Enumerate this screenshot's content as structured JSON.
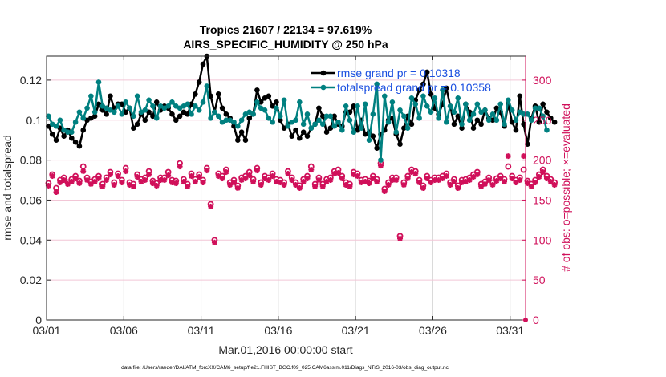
{
  "chart_data": {
    "type": "line",
    "title": "Tropics 21607 / 22134 = 97.619%",
    "subtitle": "AIRS_SPECIFIC_HUMIDITY @ 250 hPa",
    "xlabel": "Mar.01,2016 00:00:00 start",
    "ylabel": "rmse and totalspread",
    "y2label": "# of obs: o=possible; ×=evaluated",
    "footnote": "data file: /Users/raeder/DAI/ATM_forcXX/CAM6_setup/f.e21.FHIST_BGC.f09_025.CAM6assim.011/Diags_NTrS_2016-03/obs_diag_output.nc",
    "x_tick_labels": [
      "03/01",
      "03/06",
      "03/11",
      "03/16",
      "03/21",
      "03/26",
      "03/31"
    ],
    "x_tick_days": [
      0,
      5,
      10,
      15,
      20,
      25,
      30
    ],
    "xlim_days": [
      0,
      31
    ],
    "ylim": [
      0,
      0.132
    ],
    "y_ticks": [
      0,
      0.02,
      0.04,
      0.06,
      0.08,
      0.1,
      0.12
    ],
    "y_tick_labels": [
      "0",
      "0.02",
      "0.04",
      "0.06",
      "0.08",
      "0.1",
      "0.12"
    ],
    "y2lim": [
      0,
      330
    ],
    "y2_ticks": [
      0,
      50,
      100,
      150,
      200,
      250,
      300
    ],
    "y2_tick_labels": [
      "0",
      "50",
      "100",
      "150",
      "200",
      "250",
      "300"
    ],
    "legend_position": "top-right",
    "colors": {
      "rmse": "#000000",
      "totalspread": "#008080",
      "obs": "#d0105a",
      "legend_text": "#1a4fe0",
      "grid": "#f2c6d6",
      "vgrid": "#d9d9d9"
    },
    "time_step_days": 0.25,
    "series": [
      {
        "name": "rmse grand pr = 0.10318",
        "axis": "left",
        "values": [
          0.097,
          0.093,
          0.09,
          0.096,
          0.092,
          0.095,
          0.091,
          0.089,
          0.087,
          0.095,
          0.1,
          0.101,
          0.102,
          0.108,
          0.105,
          0.103,
          0.112,
          0.106,
          0.108,
          0.108,
          0.104,
          0.106,
          0.096,
          0.098,
          0.103,
          0.1,
          0.104,
          0.102,
          0.109,
          0.105,
          0.107,
          0.106,
          0.103,
          0.1,
          0.102,
          0.104,
          0.103,
          0.108,
          0.113,
          0.119,
          0.128,
          0.132,
          0.112,
          0.104,
          0.113,
          0.106,
          0.103,
          0.101,
          0.097,
          0.09,
          0.094,
          0.09,
          0.101,
          0.103,
          0.115,
          0.109,
          0.111,
          0.112,
          0.107,
          0.109,
          0.1,
          0.096,
          0.098,
          0.092,
          0.095,
          0.091,
          0.094,
          0.092,
          0.096,
          0.098,
          0.106,
          0.102,
          0.094,
          0.096,
          0.102,
          0.098,
          0.097,
          0.104,
          0.104,
          0.107,
          0.095,
          0.1,
          0.093,
          0.094,
          0.092,
          0.086,
          0.093,
          0.095,
          0.1,
          0.101,
          0.093,
          0.088,
          0.096,
          0.102,
          0.098,
          0.11,
          0.115,
          0.118,
          0.124,
          0.113,
          0.106,
          0.103,
          0.108,
          0.116,
          0.107,
          0.098,
          0.102,
          0.096,
          0.108,
          0.104,
          0.096,
          0.1,
          0.098,
          0.105,
          0.101,
          0.1,
          0.106,
          0.104,
          0.097,
          0.108,
          0.099,
          0.095,
          0.112,
          0.098,
          0.088,
          0.101,
          0.107,
          0.099,
          0.108,
          0.104,
          0.101,
          0.099
        ]
      },
      {
        "name": "totalspread grand pr = 0.10358",
        "axis": "left",
        "values": [
          0.102,
          0.098,
          0.097,
          0.1,
          0.095,
          0.094,
          0.094,
          0.099,
          0.104,
          0.101,
          0.106,
          0.112,
          0.104,
          0.119,
          0.107,
          0.106,
          0.105,
          0.104,
          0.107,
          0.103,
          0.109,
          0.106,
          0.102,
          0.112,
          0.104,
          0.105,
          0.11,
          0.107,
          0.101,
          0.107,
          0.106,
          0.107,
          0.109,
          0.107,
          0.106,
          0.107,
          0.108,
          0.103,
          0.107,
          0.105,
          0.109,
          0.117,
          0.101,
          0.104,
          0.102,
          0.099,
          0.1,
          0.1,
          0.099,
          0.097,
          0.1,
          0.103,
          0.104,
          0.103,
          0.109,
          0.106,
          0.105,
          0.101,
          0.099,
          0.106,
          0.102,
          0.11,
          0.097,
          0.099,
          0.1,
          0.109,
          0.098,
          0.103,
          0.096,
          0.098,
          0.1,
          0.098,
          0.102,
          0.102,
          0.097,
          0.099,
          0.095,
          0.107,
          0.1,
          0.094,
          0.107,
          0.096,
          0.108,
          0.09,
          0.103,
          0.118,
          0.08,
          0.112,
          0.099,
          0.109,
          0.094,
          0.105,
          0.102,
          0.096,
          0.111,
          0.108,
          0.101,
          0.112,
          0.107,
          0.104,
          0.111,
          0.101,
          0.115,
          0.099,
          0.107,
          0.104,
          0.111,
          0.098,
          0.108,
          0.1,
          0.103,
          0.108,
          0.104,
          0.105,
          0.1,
          0.103,
          0.1,
          0.108,
          0.098,
          0.11,
          0.105,
          0.1,
          0.104,
          0.103,
          0.103,
          0.1,
          0.106,
          0.106,
          0.102,
          0.095
        ]
      },
      {
        "name": "possible",
        "axis": "right",
        "marker": "o",
        "values": [
          171,
          182,
          165,
          175,
          178,
          172,
          176,
          180,
          174,
          192,
          178,
          173,
          176,
          180,
          170,
          178,
          185,
          172,
          183,
          175,
          190,
          172,
          170,
          182,
          176,
          178,
          186,
          174,
          171,
          178,
          178,
          185,
          175,
          174,
          196,
          176,
          170,
          183,
          176,
          182,
          175,
          190,
          145,
          100,
          183,
          180,
          188,
          172,
          175,
          168,
          178,
          180,
          185,
          176,
          190,
          172,
          180,
          178,
          183,
          176,
          175,
          172,
          186,
          178,
          172,
          168,
          176,
          180,
          192,
          170,
          178,
          170,
          176,
          178,
          186,
          188,
          180,
          172,
          170,
          185,
          183,
          175,
          176,
          174,
          180,
          176,
          196,
          164,
          172,
          178,
          178,
          105,
          172,
          180,
          188,
          186,
          175,
          168,
          180,
          175,
          178,
          178,
          180,
          183,
          172,
          176,
          168,
          175,
          176,
          178,
          182,
          185,
          170,
          173,
          178,
          172,
          177,
          180,
          176,
          192,
          180,
          175,
          178,
          188,
          174,
          170,
          175,
          182,
          188,
          180,
          176,
          172
        ]
      },
      {
        "name": "evaluated",
        "axis": "right",
        "marker": "x",
        "values": [
          168,
          180,
          160,
          172,
          175,
          170,
          173,
          177,
          171,
          186,
          175,
          170,
          173,
          177,
          167,
          175,
          182,
          169,
          180,
          172,
          186,
          169,
          167,
          179,
          173,
          175,
          182,
          171,
          168,
          175,
          175,
          181,
          172,
          171,
          192,
          173,
          167,
          180,
          173,
          179,
          172,
          187,
          142,
          97,
          180,
          177,
          185,
          169,
          172,
          165,
          175,
          177,
          181,
          173,
          187,
          169,
          177,
          175,
          180,
          173,
          172,
          169,
          183,
          175,
          169,
          165,
          173,
          177,
          188,
          167,
          175,
          167,
          173,
          175,
          183,
          184,
          177,
          169,
          167,
          182,
          180,
          172,
          173,
          171,
          177,
          173,
          193,
          161,
          169,
          175,
          175,
          102,
          169,
          177,
          185,
          183,
          172,
          165,
          177,
          172,
          175,
          175,
          177,
          180,
          169,
          173,
          165,
          172,
          173,
          175,
          179,
          182,
          167,
          170,
          175,
          169,
          174,
          177,
          173,
          205,
          177,
          172,
          175,
          205,
          171,
          167,
          172,
          179,
          185,
          177,
          173,
          169
        ]
      }
    ]
  }
}
